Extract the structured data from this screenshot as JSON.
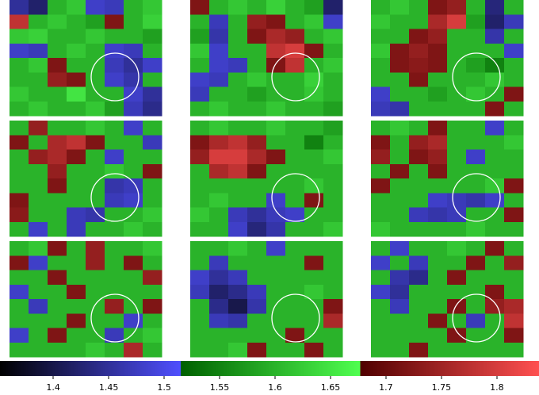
{
  "chart_data": {
    "type": "heatmap-grid",
    "clim": [
      1.352,
      1.838
    ],
    "colorbar": [
      {
        "range": [
          1.352,
          1.515
        ],
        "from": "#000000",
        "to": "#5050ff"
      },
      {
        "range": [
          1.515,
          1.677
        ],
        "from": "#006000",
        "to": "#50ff50"
      },
      {
        "range": [
          1.677,
          1.838
        ],
        "from": "#500000",
        "to": "#ff5050"
      }
    ],
    "ticks": [
      1.4,
      1.45,
      1.5,
      1.55,
      1.6,
      1.65,
      1.7,
      1.75,
      1.8
    ],
    "panels": [
      [
        [
          1.45,
          1.42,
          1.6,
          1.62,
          1.48,
          1.47,
          1.6,
          1.62
        ],
        [
          1.78,
          1.6,
          1.62,
          1.6,
          1.58,
          1.72,
          1.6,
          1.63
        ],
        [
          1.62,
          1.63,
          1.6,
          1.6,
          1.62,
          1.6,
          1.6,
          1.58
        ],
        [
          1.48,
          1.47,
          1.6,
          1.62,
          1.6,
          1.48,
          1.47,
          1.6
        ],
        [
          1.6,
          1.62,
          1.72,
          1.6,
          1.6,
          1.47,
          1.45,
          1.48
        ],
        [
          1.6,
          1.6,
          1.74,
          1.72,
          1.6,
          1.48,
          1.46,
          1.6
        ],
        [
          1.62,
          1.6,
          1.6,
          1.65,
          1.6,
          1.6,
          1.48,
          1.45
        ],
        [
          1.6,
          1.62,
          1.6,
          1.6,
          1.62,
          1.58,
          1.47,
          1.44
        ]
      ],
      [
        [
          1.72,
          1.6,
          1.62,
          1.6,
          1.63,
          1.6,
          1.58,
          1.42
        ],
        [
          1.6,
          1.47,
          1.6,
          1.74,
          1.72,
          1.6,
          1.62,
          1.48
        ],
        [
          1.58,
          1.46,
          1.6,
          1.72,
          1.76,
          1.74,
          1.6,
          1.62
        ],
        [
          1.62,
          1.48,
          1.6,
          1.6,
          1.78,
          1.8,
          1.72,
          1.6
        ],
        [
          1.6,
          1.48,
          1.47,
          1.6,
          1.72,
          1.78,
          1.6,
          1.62
        ],
        [
          1.48,
          1.47,
          1.6,
          1.62,
          1.6,
          1.6,
          1.63,
          1.6
        ],
        [
          1.47,
          1.6,
          1.6,
          1.58,
          1.6,
          1.6,
          1.62,
          1.6
        ],
        [
          1.6,
          1.62,
          1.6,
          1.6,
          1.62,
          1.6,
          1.6,
          1.58
        ]
      ],
      [
        [
          1.6,
          1.62,
          1.6,
          1.72,
          1.74,
          1.6,
          1.43,
          1.6
        ],
        [
          1.62,
          1.6,
          1.6,
          1.76,
          1.8,
          1.58,
          1.42,
          1.47
        ],
        [
          1.6,
          1.6,
          1.72,
          1.74,
          1.6,
          1.6,
          1.46,
          1.6
        ],
        [
          1.62,
          1.72,
          1.74,
          1.72,
          1.6,
          1.6,
          1.6,
          1.48
        ],
        [
          1.6,
          1.72,
          1.73,
          1.72,
          1.6,
          1.58,
          1.55,
          1.6
        ],
        [
          1.6,
          1.6,
          1.72,
          1.6,
          1.6,
          1.6,
          1.62,
          1.6
        ],
        [
          1.48,
          1.6,
          1.6,
          1.58,
          1.6,
          1.62,
          1.6,
          1.72
        ],
        [
          1.47,
          1.46,
          1.6,
          1.6,
          1.6,
          1.6,
          1.72,
          1.6
        ]
      ],
      [
        [
          1.6,
          1.74,
          1.6,
          1.6,
          1.62,
          1.6,
          1.48,
          1.6
        ],
        [
          1.72,
          1.6,
          1.76,
          1.78,
          1.72,
          1.6,
          1.6,
          1.47
        ],
        [
          1.6,
          1.74,
          1.76,
          1.72,
          1.6,
          1.48,
          1.6,
          1.6
        ],
        [
          1.6,
          1.6,
          1.74,
          1.6,
          1.6,
          1.62,
          1.6,
          1.72
        ],
        [
          1.6,
          1.6,
          1.72,
          1.6,
          1.6,
          1.46,
          1.47,
          1.6
        ],
        [
          1.72,
          1.6,
          1.6,
          1.6,
          1.6,
          1.47,
          1.48,
          1.6
        ],
        [
          1.73,
          1.6,
          1.6,
          1.47,
          1.46,
          1.6,
          1.6,
          1.62
        ],
        [
          1.6,
          1.48,
          1.6,
          1.47,
          1.6,
          1.6,
          1.62,
          1.6
        ]
      ],
      [
        [
          1.6,
          1.62,
          1.6,
          1.6,
          1.62,
          1.6,
          1.6,
          1.58
        ],
        [
          1.72,
          1.76,
          1.78,
          1.74,
          1.6,
          1.6,
          1.55,
          1.6
        ],
        [
          1.74,
          1.8,
          1.8,
          1.76,
          1.72,
          1.6,
          1.6,
          1.62
        ],
        [
          1.6,
          1.76,
          1.78,
          1.72,
          1.6,
          1.6,
          1.6,
          1.6
        ],
        [
          1.6,
          1.6,
          1.6,
          1.6,
          1.6,
          1.6,
          1.62,
          1.6
        ],
        [
          1.6,
          1.62,
          1.6,
          1.6,
          1.48,
          1.6,
          1.72,
          1.6
        ],
        [
          1.62,
          1.6,
          1.47,
          1.45,
          1.47,
          1.48,
          1.6,
          1.6
        ],
        [
          1.6,
          1.6,
          1.48,
          1.43,
          1.46,
          1.6,
          1.6,
          1.62
        ]
      ],
      [
        [
          1.6,
          1.62,
          1.6,
          1.72,
          1.6,
          1.6,
          1.48,
          1.6
        ],
        [
          1.72,
          1.6,
          1.74,
          1.76,
          1.6,
          1.6,
          1.6,
          1.62
        ],
        [
          1.74,
          1.6,
          1.72,
          1.74,
          1.6,
          1.48,
          1.6,
          1.6
        ],
        [
          1.6,
          1.72,
          1.6,
          1.72,
          1.6,
          1.6,
          1.6,
          1.6
        ],
        [
          1.72,
          1.6,
          1.6,
          1.6,
          1.6,
          1.6,
          1.62,
          1.72
        ],
        [
          1.6,
          1.6,
          1.6,
          1.48,
          1.47,
          1.46,
          1.48,
          1.6
        ],
        [
          1.6,
          1.6,
          1.47,
          1.46,
          1.47,
          1.6,
          1.6,
          1.72
        ],
        [
          1.62,
          1.6,
          1.6,
          1.6,
          1.6,
          1.62,
          1.6,
          1.6
        ]
      ],
      [
        [
          1.6,
          1.62,
          1.72,
          1.6,
          1.74,
          1.6,
          1.6,
          1.62
        ],
        [
          1.72,
          1.48,
          1.6,
          1.6,
          1.74,
          1.6,
          1.72,
          1.6
        ],
        [
          1.6,
          1.6,
          1.72,
          1.6,
          1.6,
          1.6,
          1.6,
          1.74
        ],
        [
          1.48,
          1.6,
          1.6,
          1.72,
          1.6,
          1.6,
          1.6,
          1.6
        ],
        [
          1.6,
          1.47,
          1.6,
          1.6,
          1.6,
          1.74,
          1.6,
          1.72
        ],
        [
          1.6,
          1.6,
          1.6,
          1.72,
          1.6,
          1.6,
          1.48,
          1.6
        ],
        [
          1.48,
          1.6,
          1.72,
          1.6,
          1.6,
          1.47,
          1.6,
          1.62
        ],
        [
          1.6,
          1.6,
          1.6,
          1.6,
          1.62,
          1.6,
          1.76,
          1.6
        ]
      ],
      [
        [
          1.6,
          1.6,
          1.62,
          1.6,
          1.48,
          1.6,
          1.6,
          1.6
        ],
        [
          1.6,
          1.47,
          1.6,
          1.6,
          1.6,
          1.6,
          1.72,
          1.6
        ],
        [
          1.48,
          1.45,
          1.47,
          1.6,
          1.6,
          1.6,
          1.6,
          1.6
        ],
        [
          1.47,
          1.42,
          1.44,
          1.47,
          1.6,
          1.6,
          1.62,
          1.6
        ],
        [
          1.6,
          1.44,
          1.4,
          1.46,
          1.6,
          1.6,
          1.6,
          1.72
        ],
        [
          1.6,
          1.47,
          1.46,
          1.6,
          1.6,
          1.6,
          1.6,
          1.76
        ],
        [
          1.6,
          1.6,
          1.6,
          1.6,
          1.6,
          1.72,
          1.6,
          1.6
        ],
        [
          1.6,
          1.6,
          1.62,
          1.72,
          1.6,
          1.6,
          1.72,
          1.6
        ]
      ],
      [
        [
          1.6,
          1.48,
          1.6,
          1.6,
          1.62,
          1.6,
          1.72,
          1.6
        ],
        [
          1.48,
          1.6,
          1.47,
          1.6,
          1.6,
          1.72,
          1.6,
          1.74
        ],
        [
          1.6,
          1.46,
          1.44,
          1.6,
          1.72,
          1.6,
          1.6,
          1.6
        ],
        [
          1.48,
          1.45,
          1.6,
          1.6,
          1.6,
          1.6,
          1.72,
          1.6
        ],
        [
          1.6,
          1.47,
          1.6,
          1.6,
          1.72,
          1.6,
          1.74,
          1.76
        ],
        [
          1.6,
          1.6,
          1.6,
          1.72,
          1.6,
          1.47,
          1.6,
          1.78
        ],
        [
          1.6,
          1.6,
          1.6,
          1.6,
          1.72,
          1.6,
          1.6,
          1.72
        ],
        [
          1.6,
          1.6,
          1.72,
          1.6,
          1.6,
          1.6,
          1.6,
          1.6
        ]
      ]
    ]
  }
}
